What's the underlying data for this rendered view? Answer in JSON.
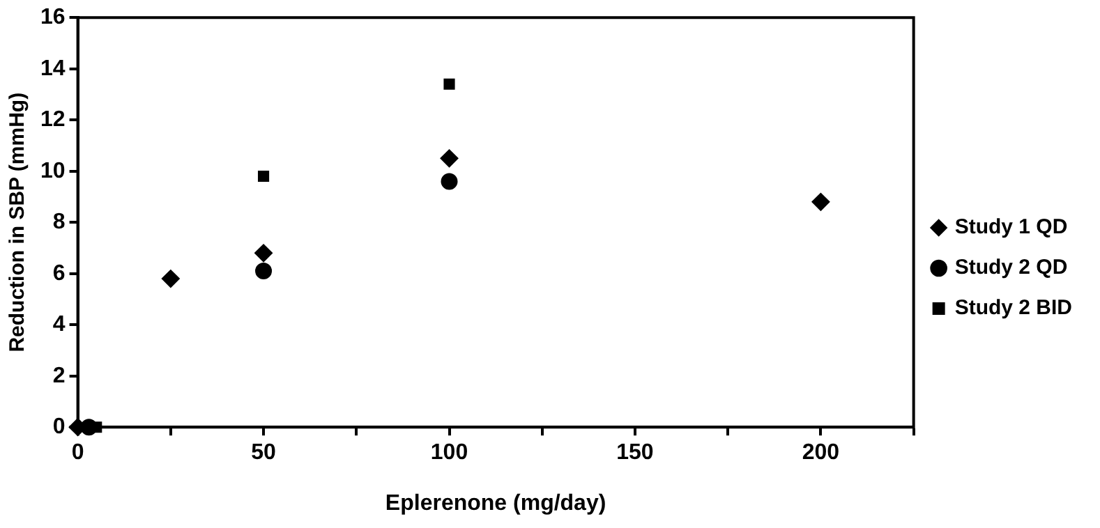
{
  "chart_data": {
    "type": "scatter",
    "xlabel": "Eplerenone (mg/day)",
    "ylabel": "Reduction in SBP (mmHg)",
    "xlim": [
      0,
      225
    ],
    "xticks": [
      0,
      {
        "value": 25,
        "label": null
      },
      50,
      {
        "value": 75,
        "label": null
      },
      100,
      {
        "value": 125,
        "label": null
      },
      150,
      {
        "value": 175,
        "label": null
      },
      200,
      {
        "value": 225,
        "label": null
      }
    ],
    "ylim": [
      0,
      16
    ],
    "yticks": [
      0,
      2,
      4,
      6,
      8,
      10,
      12,
      14,
      16
    ],
    "grid": false,
    "legend": "right",
    "series": [
      {
        "name": "Study 1 QD",
        "color": "#000000",
        "marker": "diamond",
        "x": [
          0,
          25,
          50,
          100,
          200
        ],
        "values": [
          0,
          5.8,
          6.8,
          10.5,
          8.8
        ]
      },
      {
        "name": "Study 2 QD",
        "color": "#000000",
        "marker": "circle",
        "x": [
          3,
          50,
          100
        ],
        "values": [
          0,
          6.1,
          9.6
        ]
      },
      {
        "name": "Study 2 BID",
        "color": "#000000",
        "marker": "square",
        "x": [
          5,
          50,
          100
        ],
        "values": [
          0,
          9.8,
          13.4
        ]
      }
    ]
  }
}
